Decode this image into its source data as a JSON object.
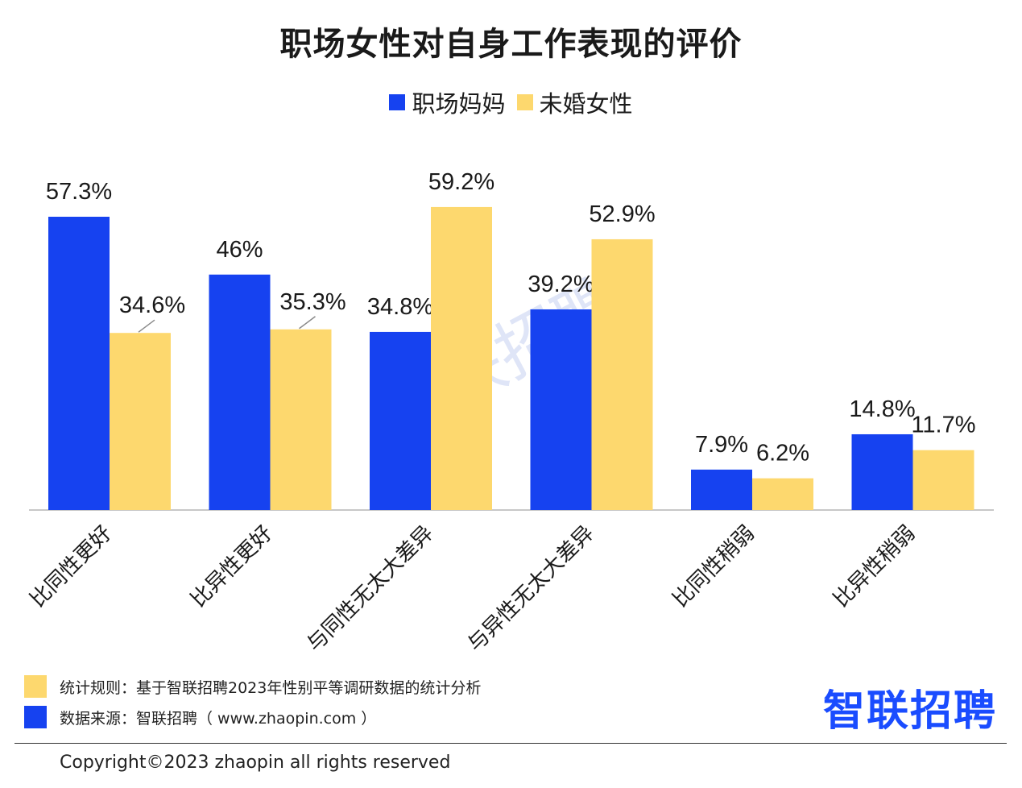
{
  "colors": {
    "mothers": "#1642f0",
    "unmarried": "#fdd86e",
    "axis": "#c8c8c8",
    "leader": "#8a8a8a"
  },
  "chart_data": {
    "type": "bar",
    "title": "职场女性对自身工作表现的评价",
    "categories": [
      "比同性更好",
      "比异性更好",
      "与同性无太大差异",
      "与异性无太大差异",
      "比同性稍弱",
      "比异性稍弱"
    ],
    "series": [
      {
        "name": "职场妈妈",
        "values": [
          57.3,
          46,
          34.8,
          39.2,
          7.9,
          14.8
        ],
        "labels": [
          "57.3%",
          "46%",
          "34.8%",
          "39.2%",
          "7.9%",
          "14.8%"
        ]
      },
      {
        "name": "未婚女性",
        "values": [
          34.6,
          35.3,
          59.2,
          52.9,
          6.2,
          11.7
        ],
        "labels": [
          "34.6%",
          "35.3%",
          "59.2%",
          "52.9%",
          "6.2%",
          "11.7%"
        ]
      }
    ],
    "ylim": [
      0,
      65
    ],
    "xlabel": "",
    "ylabel": "",
    "legend_position": "top-center",
    "grid": false
  },
  "watermark": "智联招聘",
  "footer": {
    "rule": "统计规则：基于智联招聘2023年性别平等调研数据的统计分析",
    "source": "数据来源：智联招聘（ www.zhaopin.com ）"
  },
  "logo": {
    "text": "智联招聘"
  },
  "copyright": "Copyright©2023 zhaopin all rights reserved"
}
